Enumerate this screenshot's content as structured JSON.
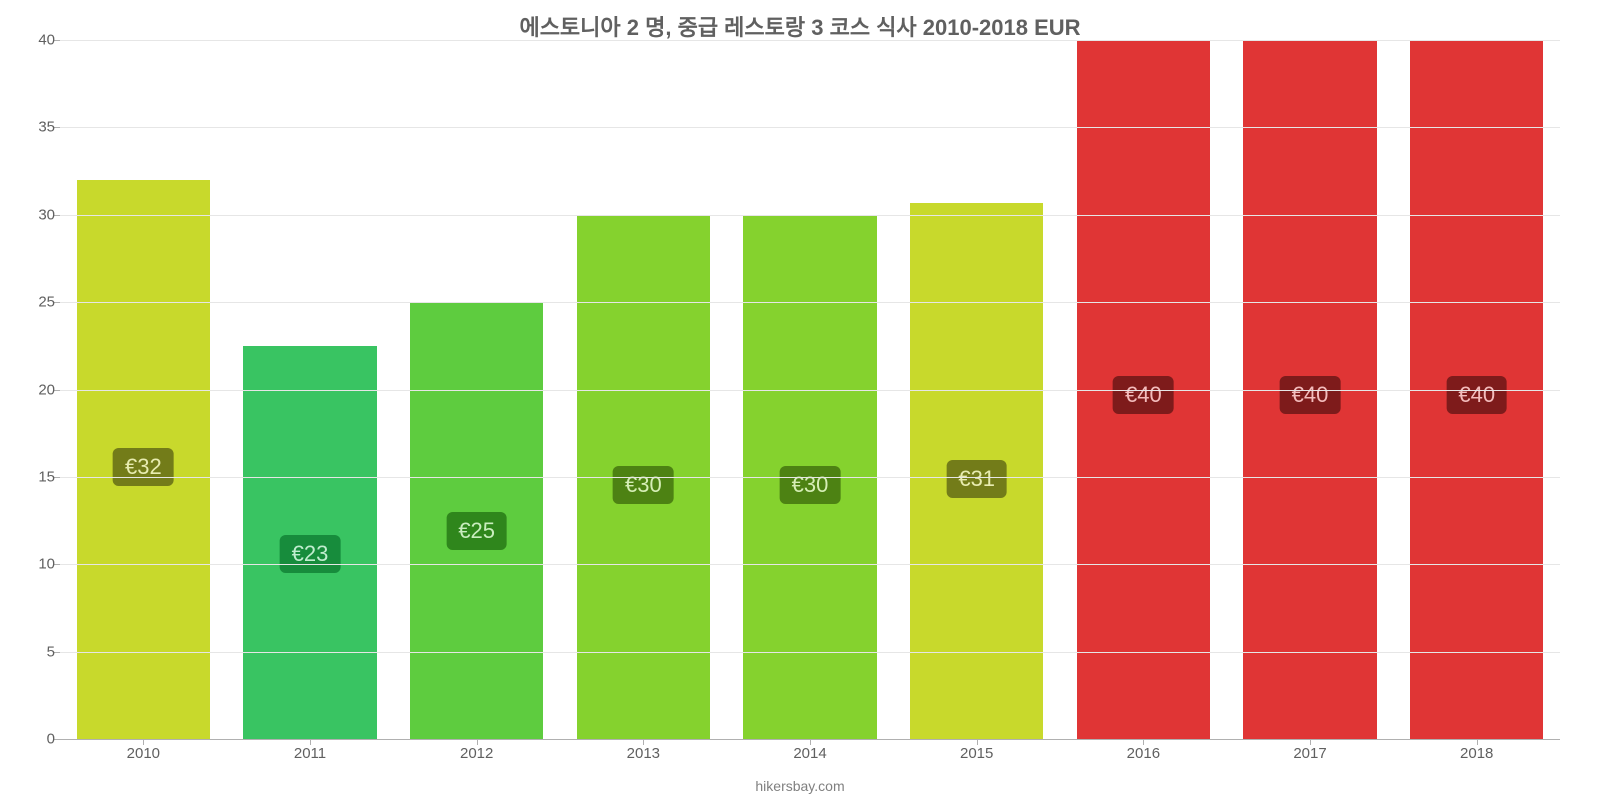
{
  "chart": {
    "type": "bar",
    "title": "에스토니아 2 명, 중급 레스토랑 3 코스 식사 2010-2018 EUR",
    "title_fontsize": 22,
    "title_color": "#606060",
    "source": "hikersbay.com",
    "background_color": "#ffffff",
    "grid_color": "#e6e6e6",
    "axis_color": "#b0b0b0",
    "axis_label_color": "#606060",
    "axis_label_fontsize": 15,
    "ylim_min": 0,
    "ylim_max": 40,
    "ytick_step": 5,
    "bar_width_pct": 80,
    "categories": [
      "2010",
      "2011",
      "2012",
      "2013",
      "2014",
      "2015",
      "2016",
      "2017",
      "2018"
    ],
    "values": [
      32,
      22.5,
      25,
      30,
      30,
      30.7,
      40,
      40,
      40
    ],
    "value_labels": [
      "€32",
      "€23",
      "€25",
      "€30",
      "€30",
      "€31",
      "€40",
      "€40",
      "€40"
    ],
    "bar_colors": [
      "#c8d92c",
      "#39c462",
      "#5ecc3f",
      "#85d22e",
      "#85d22e",
      "#c8d92c",
      "#e03535",
      "#e03535",
      "#e03535"
    ],
    "label_bg_colors": [
      "#737c19",
      "#178c3c",
      "#2f861c",
      "#4d8213",
      "#4d8213",
      "#737c19",
      "#7e1b1b",
      "#7e1b1b",
      "#7e1b1b"
    ],
    "label_text_colors": [
      "#e8ecb0",
      "#c0edcf",
      "#c9edbe",
      "#d6eeb6",
      "#d6eeb6",
      "#e8ecb0",
      "#f3bcbc",
      "#f3bcbc",
      "#f3bcbc"
    ],
    "label_fontsize": 22
  }
}
